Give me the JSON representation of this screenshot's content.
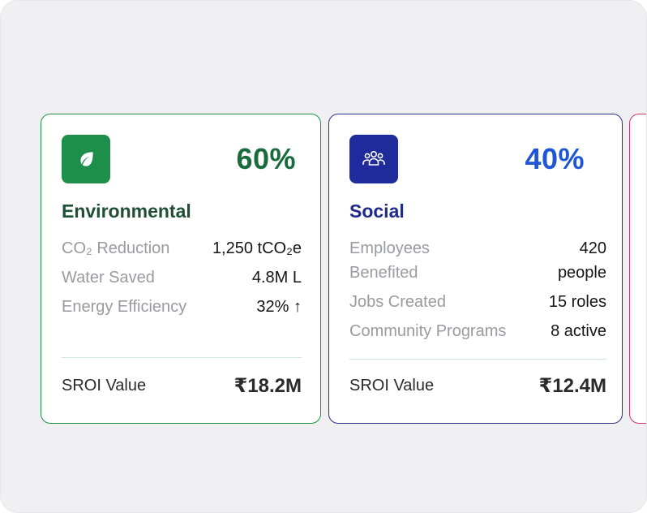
{
  "cards": [
    {
      "percentage": "60%",
      "title": "Environmental",
      "icon": "leaf-icon",
      "color": "#1e8f4a",
      "metrics": [
        {
          "label": "CO₂ Reduction",
          "value": "1,250 tCO₂e"
        },
        {
          "label": "Water Saved",
          "value": "4.8M L"
        },
        {
          "label": "Energy Efficiency",
          "value": "32% ↑"
        }
      ],
      "sroi_label": "SROI Value",
      "sroi_value": "₹18.2M"
    },
    {
      "percentage": "40%",
      "title": "Social",
      "icon": "people-group-icon",
      "color": "#1f2a9c",
      "metrics": [
        {
          "label": "Employees Benefited",
          "value": "420 people"
        },
        {
          "label": "Jobs Created",
          "value": "15 roles"
        },
        {
          "label": "Community Programs",
          "value": "8 active"
        }
      ],
      "sroi_label": "SROI Value",
      "sroi_value": "₹12.4M"
    },
    {
      "color": "#d0336b"
    }
  ]
}
